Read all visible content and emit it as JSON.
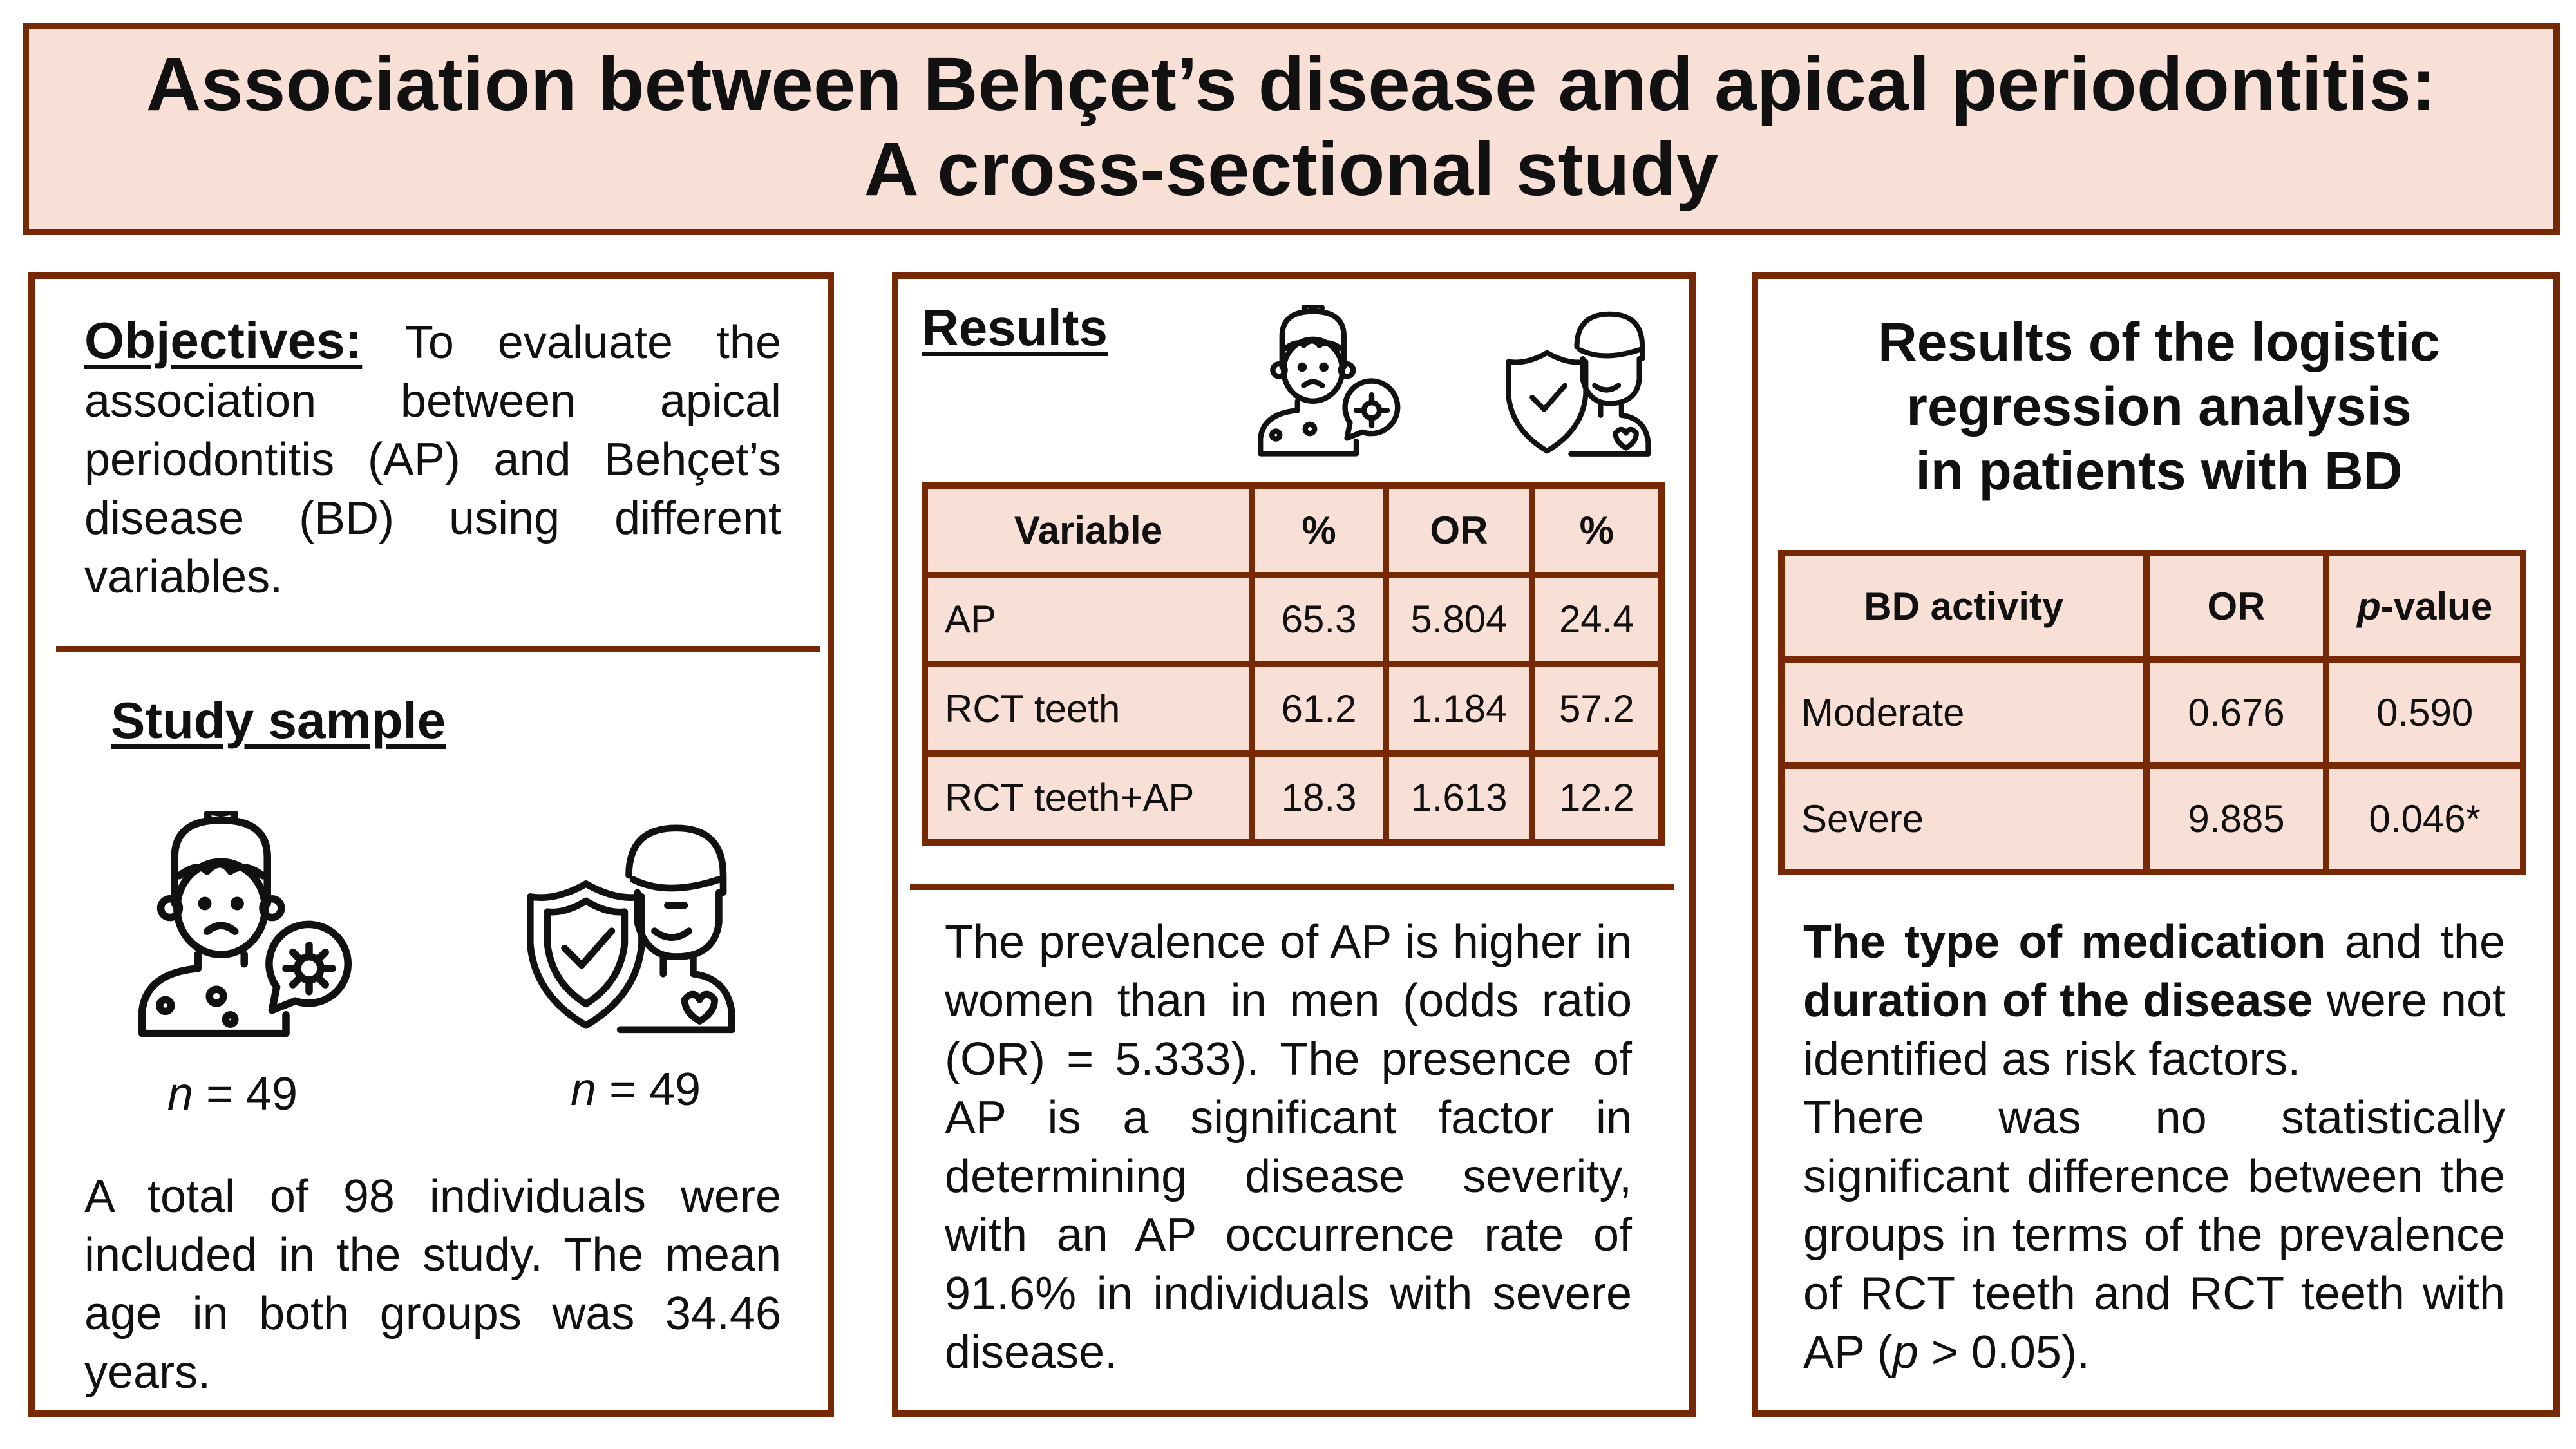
{
  "title": {
    "line1": "Association between Behçet’s disease and apical periodontitis:",
    "line2": "A cross-sectional study"
  },
  "colors": {
    "border": "#772805",
    "fill": "#f9e0d6"
  },
  "objectives": {
    "label": "Objectives:",
    "text": " To evaluate the association between apical periodontitis (AP) and Behçet’s disease (BD) using different variables."
  },
  "study_sample": {
    "heading": "Study sample",
    "icons": [
      "sick-patient-icon",
      "healthy-person-shield-icon"
    ],
    "group1_n_label": "n",
    "group1_n": " = 49",
    "group2_n_label": "n",
    "group2_n": " = 49",
    "text": "A total of 98 individuals were included in the study. The mean age in both groups was 34.46 years."
  },
  "results": {
    "heading": "Results",
    "table": {
      "headers": [
        "Variable",
        "%",
        "OR",
        "%"
      ],
      "rows": [
        [
          "AP",
          "65.3",
          "5.804",
          "24.4"
        ],
        [
          "RCT teeth",
          "61.2",
          "1.184",
          "57.2"
        ],
        [
          "RCT teeth+AP",
          "18.3",
          "1.613",
          "12.2"
        ]
      ]
    },
    "text": "The prevalence of AP is higher in women than in men (odds ratio (OR) = 5.333). The presence of AP is a significant factor in determining disease severity, with an AP occurrence rate of 91.6% in individuals with severe disease."
  },
  "logistic": {
    "heading_lines": [
      "Results of the logistic",
      "regression analysis",
      "in patients with BD"
    ],
    "table": {
      "headers": [
        "BD activity",
        "OR",
        "p",
        "-value"
      ],
      "rows": [
        [
          "Moderate",
          "0.676",
          "0.590"
        ],
        [
          "Severe",
          "9.885",
          "0.046*"
        ]
      ]
    },
    "text_bold1": "The type of medication",
    "text_1": " and the ",
    "text_bold2": "duration of the disease",
    "text_2": " were not identified as risk factors.",
    "text_3a": "There was no statistically significant difference between the groups in terms of the prevalence of RCT teeth and RCT teeth with AP (",
    "text_3p": "p",
    "text_3b": " > 0.05)."
  }
}
